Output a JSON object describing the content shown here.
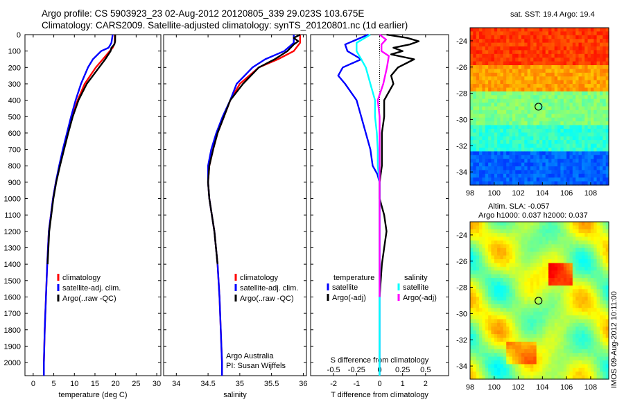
{
  "header": {
    "line1": "Argo profile: CS 5903923_23 02-Aug-2012 20120805_339 29.023S 103.675E",
    "line2": "Climatology: CARS2009. Satellite-adjusted climatology: synTS_20120801.nc (1d earlier)"
  },
  "footer_stamp": "IMOS 09-Aug-2012 10:11:00",
  "colors": {
    "climatology": "#ff0000",
    "satellite": "#0000ff",
    "argo": "#000000",
    "sal_satellite": "#00ffff",
    "sal_argo": "#ff00ff"
  },
  "chart_data": [
    {
      "type": "line",
      "xlabel": "temperature (deg C)",
      "ylabel": "",
      "xlim": [
        -2,
        31
      ],
      "ylim": [
        2080,
        0
      ],
      "xticks": [
        "0",
        "5",
        "10",
        "15",
        "20",
        "25",
        "30"
      ],
      "yticks": [
        "0",
        "100",
        "200",
        "300",
        "400",
        "500",
        "600",
        "700",
        "800",
        "900",
        "1000",
        "1100",
        "1200",
        "1300",
        "1400",
        "1500",
        "1600",
        "1700",
        "1800",
        "1900",
        "2000"
      ],
      "legend": {
        "placement": "lower-left",
        "entries": [
          "climatology",
          "satellite-adj. clim.",
          "Argo(..raw -QC)"
        ]
      },
      "series": [
        {
          "name": "climatology",
          "color": "#ff0000",
          "depth": [
            0,
            50,
            80,
            100,
            150,
            200,
            300,
            400,
            500,
            600,
            700,
            800,
            900,
            1000,
            1200,
            1400,
            1600,
            1800,
            2000,
            2080
          ],
          "values": [
            19.8,
            19.8,
            19.3,
            18.6,
            16.9,
            15.2,
            12.5,
            10.8,
            9.5,
            8.4,
            7.3,
            6.4,
            5.5,
            4.8,
            3.8,
            3.4,
            3.1,
            2.8,
            2.6,
            2.6
          ]
        },
        {
          "name": "satellite-adj. clim.",
          "color": "#0000ff",
          "depth": [
            0,
            50,
            80,
            100,
            150,
            200,
            300,
            400,
            500,
            600,
            700,
            800,
            900,
            1000,
            1200,
            1400,
            1600,
            1800,
            2000,
            2080
          ],
          "values": [
            19.3,
            19.0,
            18.3,
            16.5,
            14.5,
            13.3,
            11.6,
            10.3,
            9.2,
            8.2,
            7.2,
            6.3,
            5.5,
            4.8,
            3.8,
            3.4,
            3.1,
            2.8,
            2.6,
            2.6
          ]
        },
        {
          "name": "Argo(..raw -QC)",
          "color": "#000000",
          "depth": [
            0,
            40,
            60,
            80,
            100,
            150,
            200,
            300,
            400,
            500,
            600,
            700,
            800,
            900,
            1000,
            1200,
            1400
          ],
          "values": [
            19.9,
            19.9,
            19.7,
            19.0,
            18.8,
            17.5,
            16.0,
            13.0,
            11.0,
            9.6,
            8.5,
            7.5,
            6.5,
            5.6,
            4.9,
            3.9,
            3.5
          ]
        }
      ]
    },
    {
      "type": "line",
      "xlabel": "salinity",
      "ylabel": "",
      "xlim": [
        33.8,
        36.05
      ],
      "ylim": [
        2080,
        0
      ],
      "xticks": [
        "34",
        "34.5",
        "35",
        "35.5",
        "36"
      ],
      "legend": {
        "placement": "lower-right",
        "entries": [
          "climatology",
          "satellite-adj. clim.",
          "Argo(..raw -QC)"
        ]
      },
      "annotations": [
        "Argo Australia",
        "PI: Susan Wijffels"
      ],
      "series": [
        {
          "name": "climatology",
          "color": "#ff0000",
          "depth": [
            0,
            50,
            100,
            150,
            200,
            300,
            400,
            500,
            600,
            700,
            800,
            900,
            1000,
            1200,
            1400,
            1600,
            1800,
            2000,
            2080
          ],
          "values": [
            35.95,
            35.95,
            35.85,
            35.6,
            35.3,
            35.0,
            34.85,
            34.75,
            34.65,
            34.58,
            34.52,
            34.5,
            34.52,
            34.6,
            34.65,
            34.68,
            34.7,
            34.72,
            34.72
          ]
        },
        {
          "name": "satellite-adj. clim.",
          "color": "#0000ff",
          "depth": [
            0,
            50,
            100,
            150,
            200,
            300,
            400,
            500,
            600,
            700,
            800,
            900,
            1000,
            1200,
            1400,
            1600,
            1800,
            2000,
            2080
          ],
          "values": [
            35.85,
            35.85,
            35.7,
            35.4,
            35.2,
            34.95,
            34.85,
            34.73,
            34.63,
            34.55,
            34.5,
            34.5,
            34.52,
            34.6,
            34.65,
            34.68,
            34.7,
            34.72,
            34.72
          ]
        },
        {
          "name": "Argo(..raw -QC)",
          "color": "#000000",
          "depth": [
            0,
            20,
            40,
            60,
            80,
            100,
            150,
            200,
            300,
            400,
            500,
            600,
            700,
            800,
            900,
            1000,
            1200,
            1400
          ],
          "values": [
            35.95,
            35.85,
            35.92,
            35.85,
            35.8,
            35.75,
            35.55,
            35.3,
            35.05,
            34.85,
            34.75,
            34.65,
            34.58,
            34.52,
            34.5,
            34.52,
            34.6,
            34.65
          ]
        }
      ]
    },
    {
      "type": "line",
      "xlabel": "T difference from climatology",
      "xlabel_top": "S difference from climatology",
      "xlim": [
        -3,
        3
      ],
      "ylim": [
        2080,
        0
      ],
      "xticks": [
        "-2",
        "-1",
        "0",
        "1",
        "2"
      ],
      "xticks_top": [
        "-0.5",
        "-0.25",
        "0",
        "0.25",
        "0.5"
      ],
      "legend": {
        "placement": "lower",
        "groups": [
          {
            "title": "temperature",
            "entries": [
              "satellite",
              "Argo(-adj)"
            ]
          },
          {
            "title": "salinity",
            "entries": [
              "satellite",
              "Argo(-adj)"
            ]
          }
        ]
      },
      "series": [
        {
          "name": "satellite",
          "group": "temperature",
          "color": "#0000ff",
          "depth": [
            0,
            30,
            60,
            100,
            150,
            200,
            250,
            300,
            400,
            500,
            600,
            700,
            800,
            850,
            900,
            1000,
            1200,
            1400,
            1600,
            1800,
            2000,
            2080
          ],
          "values": [
            -0.5,
            -1.0,
            -1.5,
            -1.4,
            -0.8,
            -1.6,
            -1.8,
            -1.5,
            -1.0,
            -0.8,
            -0.6,
            -0.4,
            -0.3,
            -0.1,
            0,
            0,
            0,
            0,
            0,
            0,
            0,
            0
          ]
        },
        {
          "name": "Argo(-adj)",
          "group": "temperature",
          "color": "#000000",
          "depth": [
            0,
            20,
            40,
            60,
            80,
            100,
            120,
            150,
            200,
            250,
            300,
            400,
            500,
            600,
            700,
            800,
            900,
            1000,
            1100,
            1200,
            1300,
            1400,
            1600
          ],
          "values": [
            0.3,
            1.2,
            1.7,
            1.3,
            0.6,
            1.0,
            0.5,
            1.5,
            0.8,
            0.5,
            0.6,
            0.2,
            0.2,
            0.1,
            0.1,
            0.1,
            0,
            0,
            0.2,
            0.3,
            0.2,
            0.1,
            0
          ]
        },
        {
          "name": "satellite",
          "group": "salinity",
          "color": "#00ffff",
          "depth": [
            0,
            50,
            100,
            150,
            200,
            300,
            400,
            500,
            600,
            700,
            800,
            900,
            1000,
            1200,
            1400,
            1600,
            1800,
            2000,
            2080
          ],
          "values": [
            -0.1,
            -0.25,
            -0.25,
            -0.2,
            -0.15,
            -0.1,
            -0.05,
            -0.05,
            -0.03,
            -0.02,
            -0.02,
            0,
            0,
            0,
            0,
            0,
            0,
            0,
            0
          ]
        },
        {
          "name": "Argo(-adj)",
          "group": "salinity",
          "color": "#ff00ff",
          "depth": [
            0,
            30,
            60,
            100,
            130,
            200,
            300,
            400,
            500,
            600,
            700,
            800,
            900,
            1000,
            1200,
            1400,
            1600
          ],
          "values": [
            0,
            0.07,
            0.02,
            0.02,
            0.1,
            0.08,
            0.04,
            -0.02,
            0,
            0,
            0,
            0,
            0,
            0,
            0,
            0,
            0
          ]
        }
      ]
    },
    {
      "type": "heatmap",
      "title": "sat. SST: 19.4  Argo: 19.4",
      "xlim": [
        98,
        109.5
      ],
      "ylim": [
        -35,
        -23
      ],
      "xticks": [
        "98",
        "100",
        "102",
        "104",
        "106",
        "108"
      ],
      "yticks": [
        "-24",
        "-26",
        "-28",
        "-30",
        "-32",
        "-34"
      ],
      "marker": {
        "lon": 103.675,
        "lat": -29.023
      }
    },
    {
      "type": "heatmap",
      "title": "Altim. SLA: -0.057",
      "subtitle": "Argo h1000: 0.037 h2000: 0.037",
      "xlim": [
        98,
        109.5
      ],
      "ylim": [
        -35,
        -23
      ],
      "xticks": [
        "98",
        "100",
        "102",
        "104",
        "106",
        "108"
      ],
      "yticks": [
        "-24",
        "-26",
        "-28",
        "-30",
        "-32",
        "-34"
      ],
      "marker": {
        "lon": 103.675,
        "lat": -29.023
      }
    }
  ]
}
